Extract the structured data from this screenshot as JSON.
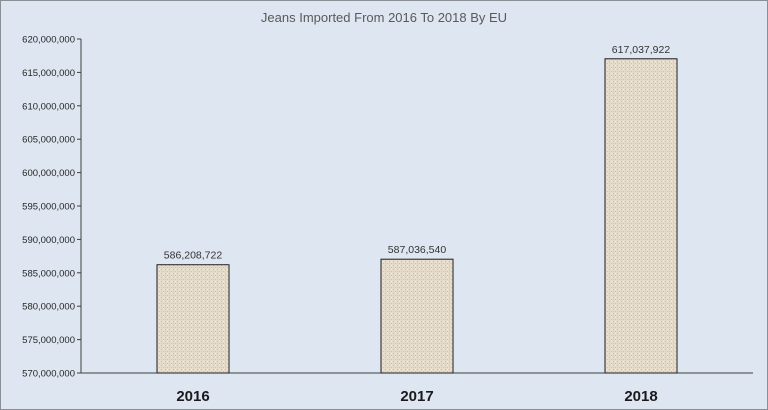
{
  "chart_data": {
    "type": "bar",
    "title": "Jeans Imported From 2016 To 2018 By EU",
    "categories": [
      "2016",
      "2017",
      "2018"
    ],
    "values": [
      586208722,
      587036540,
      617037922
    ],
    "value_labels": [
      "586,208,722",
      "587,036,540",
      "617,037,922"
    ],
    "ylim": [
      570000000,
      620000000
    ],
    "yticks": [
      570000000,
      575000000,
      580000000,
      585000000,
      590000000,
      595000000,
      600000000,
      605000000,
      610000000,
      615000000,
      620000000
    ],
    "ytick_labels": [
      "570,000,000",
      "575,000,000",
      "580,000,000",
      "585,000,000",
      "590,000,000",
      "595,000,000",
      "600,000,000",
      "605,000,000",
      "610,000,000",
      "615,000,000",
      "620,000,000"
    ],
    "xlabel": "",
    "ylabel": "",
    "grid": false,
    "colors": {
      "plot_background": "#dde6f1",
      "bar_fill": "#e6dccb",
      "bar_stroke": "#1f1f1f",
      "axis": "#404040"
    }
  }
}
